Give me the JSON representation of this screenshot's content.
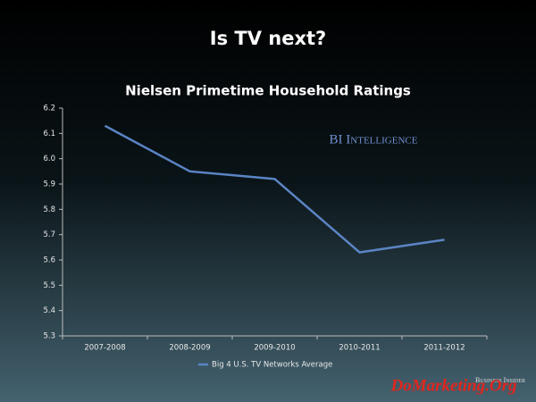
{
  "headline": "Is TV next?",
  "chart_data": {
    "type": "line",
    "title": "Nielsen Primetime Household Ratings",
    "categories": [
      "2007-2008",
      "2008-2009",
      "2009-2010",
      "2010-2011",
      "2011-2012"
    ],
    "series": [
      {
        "name": "Big 4 U.S. TV Networks Average",
        "color": "#5b84c4",
        "values": [
          6.13,
          5.95,
          5.92,
          5.63,
          5.68
        ]
      }
    ],
    "ylim": [
      5.3,
      6.2
    ],
    "yticks": [
      5.3,
      5.4,
      5.5,
      5.6,
      5.7,
      5.8,
      5.9,
      {
        "value": 6,
        "label": "6.0"
      },
      6.1,
      6.2
    ],
    "grid": false,
    "legend": "bottom",
    "watermark": "BI Intelligence"
  },
  "footer": {
    "logo": "Business Insider",
    "watermark": "DoMarketing.Org"
  }
}
